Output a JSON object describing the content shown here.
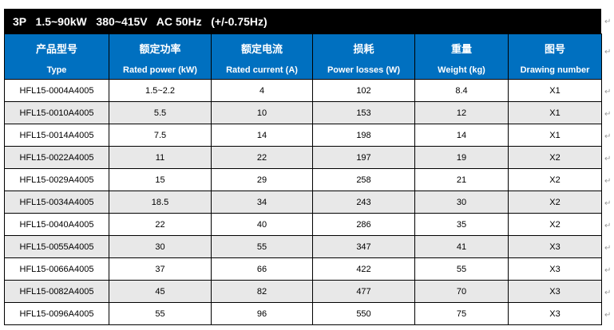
{
  "title": "3P   1.5~90kW   380~415V   AC 50Hz   (+/-0.75Hz)",
  "columns": [
    {
      "cn": "产品型号",
      "en": "Type"
    },
    {
      "cn": "额定功率",
      "en": "Rated power (kW)"
    },
    {
      "cn": "额定电流",
      "en": "Rated current (A)"
    },
    {
      "cn": "损耗",
      "en": "Power losses (W)"
    },
    {
      "cn": "重量",
      "en": "Weight (kg)"
    },
    {
      "cn": "图号",
      "en": "Drawing number"
    }
  ],
  "rows": [
    [
      "HFL15-0004A4005",
      "1.5~2.2",
      "4",
      "102",
      "8.4",
      "X1"
    ],
    [
      "HFL15-0010A4005",
      "5.5",
      "10",
      "153",
      "12",
      "X1"
    ],
    [
      "HFL15-0014A4005",
      "7.5",
      "14",
      "198",
      "14",
      "X1"
    ],
    [
      "HFL15-0022A4005",
      "11",
      "22",
      "197",
      "19",
      "X2"
    ],
    [
      "HFL15-0029A4005",
      "15",
      "29",
      "258",
      "21",
      "X2"
    ],
    [
      "HFL15-0034A4005",
      "18.5",
      "34",
      "243",
      "30",
      "X2"
    ],
    [
      "HFL15-0040A4005",
      "22",
      "40",
      "286",
      "35",
      "X2"
    ],
    [
      "HFL15-0055A4005",
      "30",
      "55",
      "347",
      "41",
      "X3"
    ],
    [
      "HFL15-0066A4005",
      "37",
      "66",
      "422",
      "55",
      "X3"
    ],
    [
      "HFL15-0082A4005",
      "45",
      "82",
      "477",
      "70",
      "X3"
    ],
    [
      "HFL15-0096A4005",
      "55",
      "96",
      "550",
      "75",
      "X3"
    ]
  ],
  "colors": {
    "header": "#0070c0",
    "title_bar": "#000000",
    "alt_row": "#e8e8e8"
  }
}
